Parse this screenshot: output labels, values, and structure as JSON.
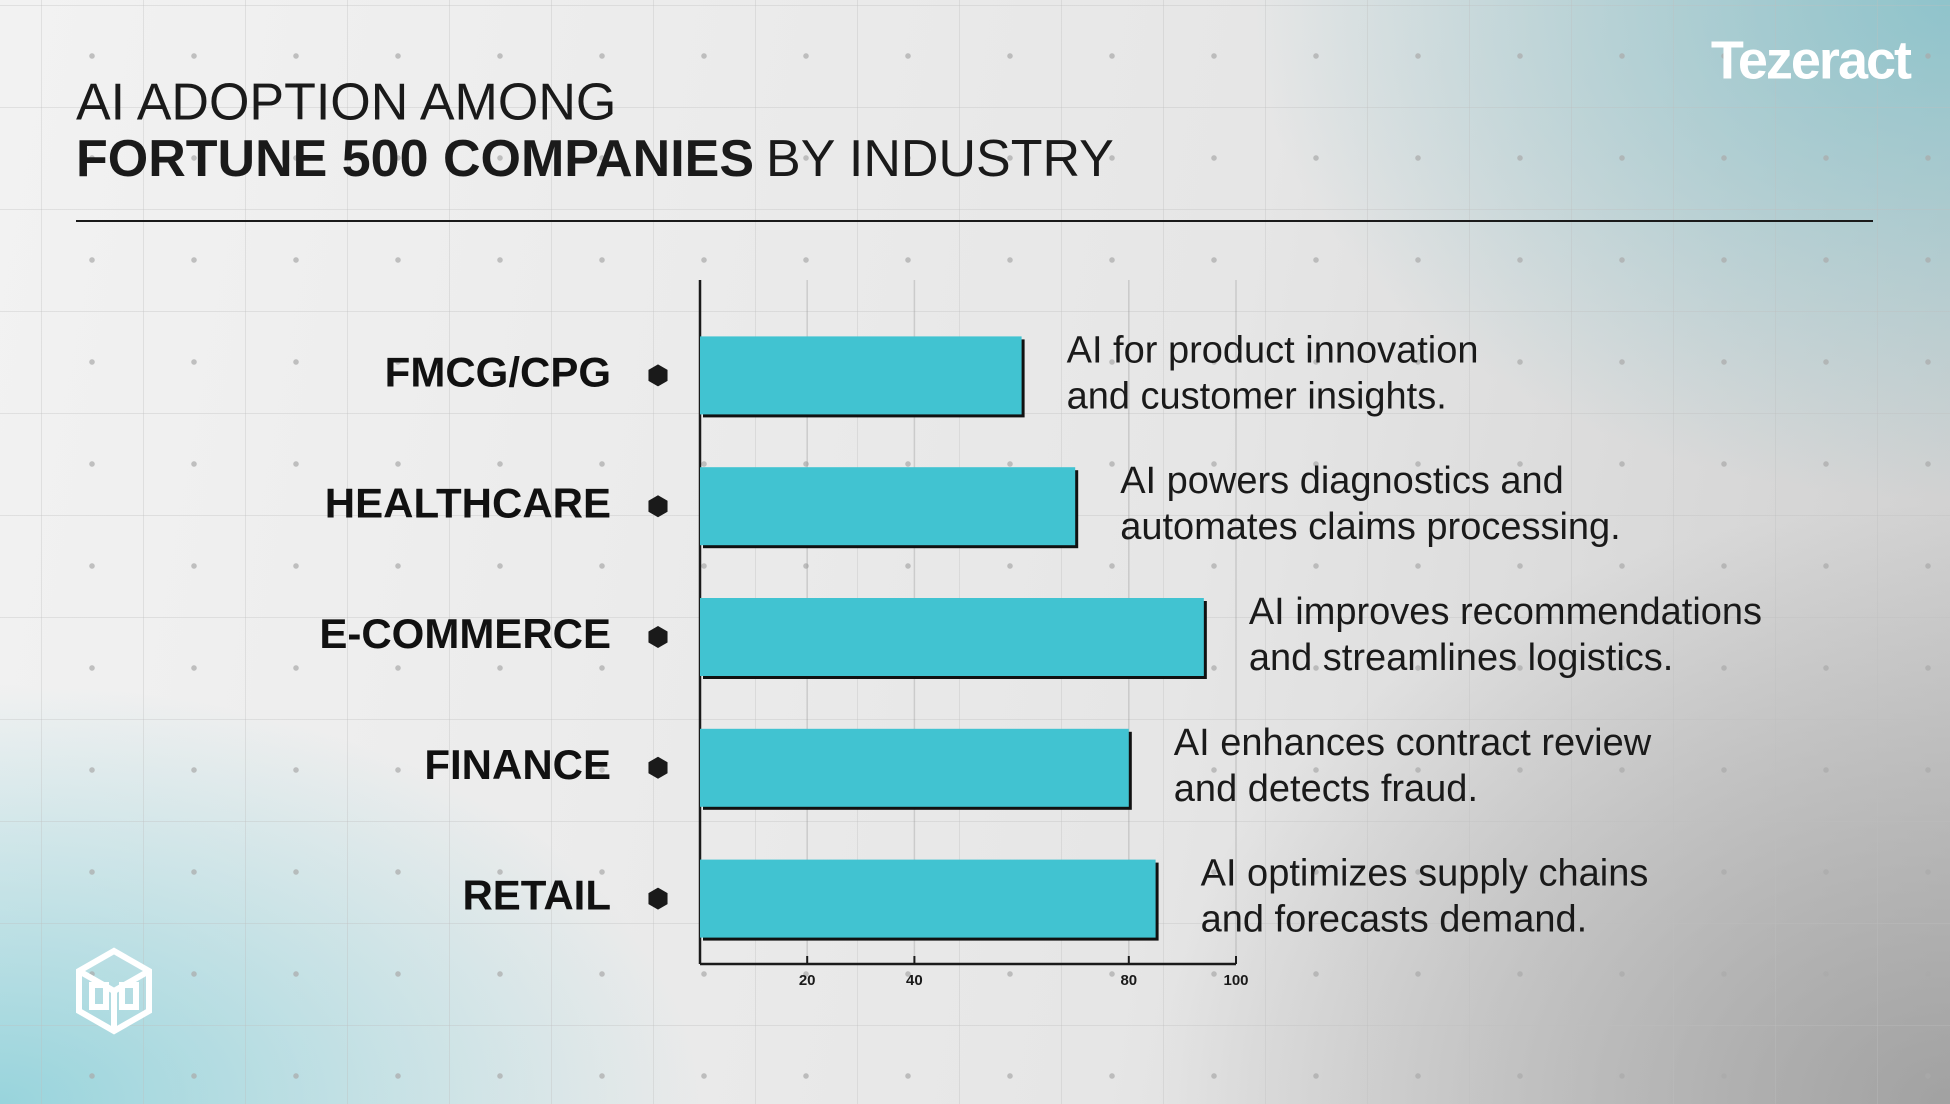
{
  "brand": "Tezeract",
  "chart_data": {
    "type": "bar",
    "orientation": "horizontal",
    "title": "AI ADOPTION AMONG",
    "title_bold": "FORTUNE 500 COMPANIES",
    "title_rest": "BY INDUSTRY",
    "categories": [
      "FMCG/CPG",
      "HEALTHCARE",
      "E-COMMERCE",
      "FINANCE",
      "RETAIL"
    ],
    "values": [
      60,
      70,
      94,
      80,
      85
    ],
    "annotations": [
      [
        "AI for product innovation",
        "and customer insights."
      ],
      [
        "AI powers diagnostics and",
        "automates claims processing."
      ],
      [
        "AI improves recommendations",
        "and streamlines logistics."
      ],
      [
        "AI enhances contract review",
        "and detects fraud."
      ],
      [
        "AI optimizes supply chains",
        "and forecasts demand."
      ]
    ],
    "color": "#41c3d1",
    "xlim": [
      0,
      100
    ],
    "xticks": [
      20,
      40,
      80,
      100
    ],
    "grid": true
  }
}
